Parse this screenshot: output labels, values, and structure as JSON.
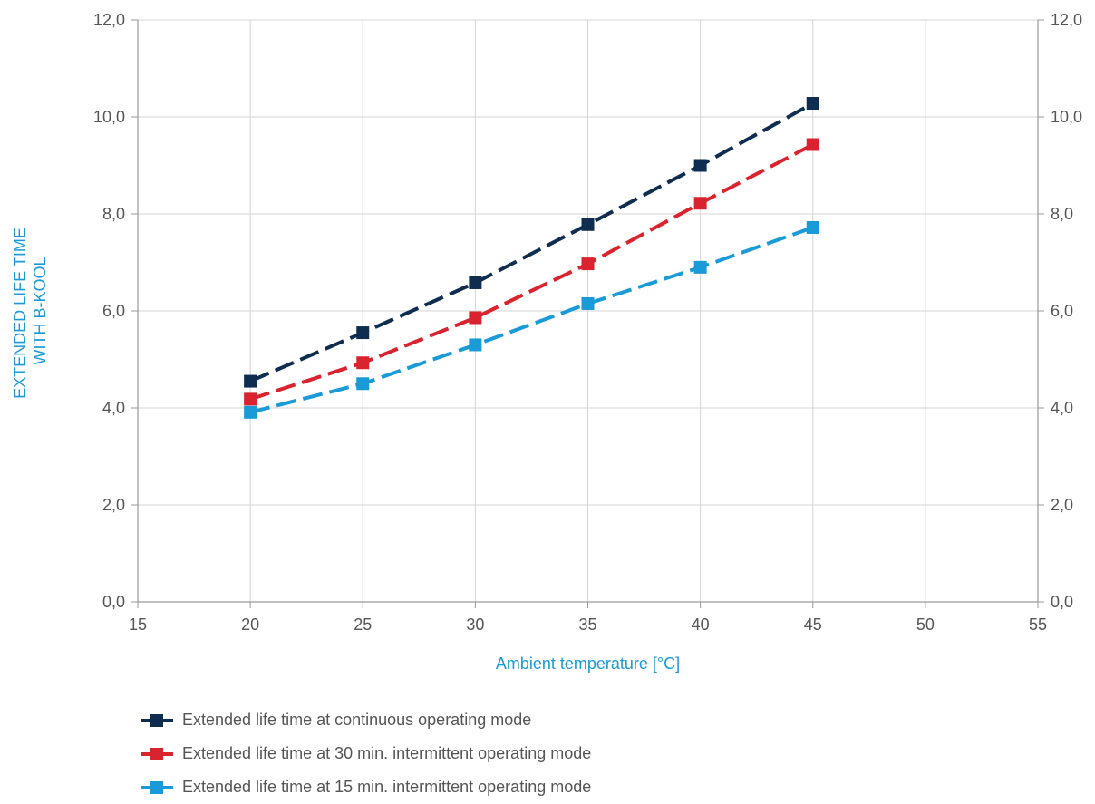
{
  "chart_data": {
    "type": "line",
    "xlabel": "Ambient temperature [°C]",
    "ylabel": "EXTENDED LIFE TIME WITH B-KOOL",
    "ylabel_lines": [
      "EXTENDED LIFE TIME",
      "WITH B-KOOL"
    ],
    "xlim": [
      15,
      55
    ],
    "ylim": [
      0,
      12
    ],
    "x_ticks": [
      "15",
      "20",
      "25",
      "30",
      "35",
      "40",
      "45",
      "50",
      "55"
    ],
    "y_ticks": [
      "0,0",
      "2,0",
      "4,0",
      "6,0",
      "8,0",
      "10,0",
      "12,0"
    ],
    "secondary_y_axis": true,
    "grid": true,
    "legend_position": "bottom",
    "x": [
      20,
      25,
      30,
      35,
      40,
      45
    ],
    "series": [
      {
        "name": "Extended life time at continuous operating mode",
        "color": "#0f2d4f",
        "values": [
          4.55,
          5.55,
          6.58,
          7.78,
          9.0,
          10.28
        ]
      },
      {
        "name": "Extended life time at 30 min. intermittent operating mode",
        "color": "#d9232e",
        "values": [
          4.18,
          4.93,
          5.86,
          6.97,
          8.22,
          9.43
        ]
      },
      {
        "name": "Extended life time at 15 min. intermittent operating mode",
        "color": "#1a9ad6",
        "values": [
          3.91,
          4.5,
          5.3,
          6.15,
          6.9,
          7.72
        ]
      }
    ],
    "colors": {
      "axis_title": "#1a9ad6",
      "tick": "#555555",
      "grid": "#d4d4d4"
    }
  }
}
